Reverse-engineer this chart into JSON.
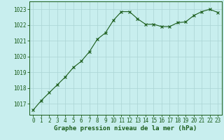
{
  "x": [
    0,
    1,
    2,
    3,
    4,
    5,
    6,
    7,
    8,
    9,
    10,
    11,
    12,
    13,
    14,
    15,
    16,
    17,
    18,
    19,
    20,
    21,
    22,
    23
  ],
  "y": [
    1016.6,
    1017.2,
    1017.7,
    1018.2,
    1018.7,
    1019.3,
    1019.7,
    1020.3,
    1021.1,
    1021.5,
    1022.3,
    1022.85,
    1022.85,
    1022.4,
    1022.05,
    1022.05,
    1021.9,
    1021.9,
    1022.15,
    1022.2,
    1022.6,
    1022.85,
    1023.0,
    1022.8
  ],
  "line_color": "#1a5c1a",
  "marker": "x",
  "marker_size": 3,
  "marker_lw": 0.8,
  "background_color": "#c8eeee",
  "grid_color": "#aad4d4",
  "ylabel_ticks": [
    1017,
    1018,
    1019,
    1020,
    1021,
    1022,
    1023
  ],
  "xtick_labels": [
    "0",
    "1",
    "2",
    "3",
    "4",
    "5",
    "6",
    "7",
    "8",
    "9",
    "10",
    "11",
    "12",
    "13",
    "14",
    "15",
    "16",
    "17",
    "18",
    "19",
    "20",
    "21",
    "22",
    "23"
  ],
  "xlabel": "Graphe pression niveau de la mer (hPa)",
  "ylim": [
    1016.3,
    1023.5
  ],
  "xlim": [
    -0.5,
    23.5
  ],
  "line_width": 0.8,
  "tick_fontsize": 5.5,
  "label_fontsize": 6.5
}
